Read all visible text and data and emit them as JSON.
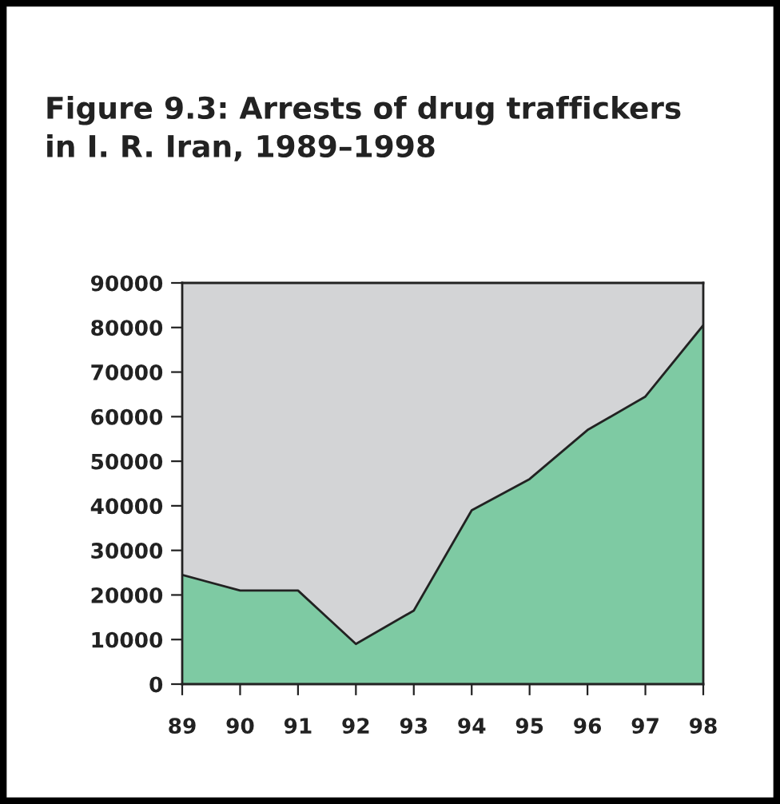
{
  "chart_data": {
    "type": "area",
    "title": "Figure 9.3: Arrests of drug traffickers\nin I. R. Iran, 1989–1998",
    "categories": [
      "89",
      "90",
      "91",
      "92",
      "93",
      "94",
      "95",
      "96",
      "97",
      "98"
    ],
    "series": [
      {
        "color": "#7ecaa3",
        "values": [
          24500,
          21000,
          21000,
          9000,
          16500,
          39000,
          46000,
          57000,
          64500,
          80500
        ]
      }
    ],
    "ylim": [
      0,
      90000
    ],
    "yticks": [
      0,
      10000,
      20000,
      30000,
      40000,
      50000,
      60000,
      70000,
      80000,
      90000
    ],
    "grid": false,
    "legend": false
  }
}
